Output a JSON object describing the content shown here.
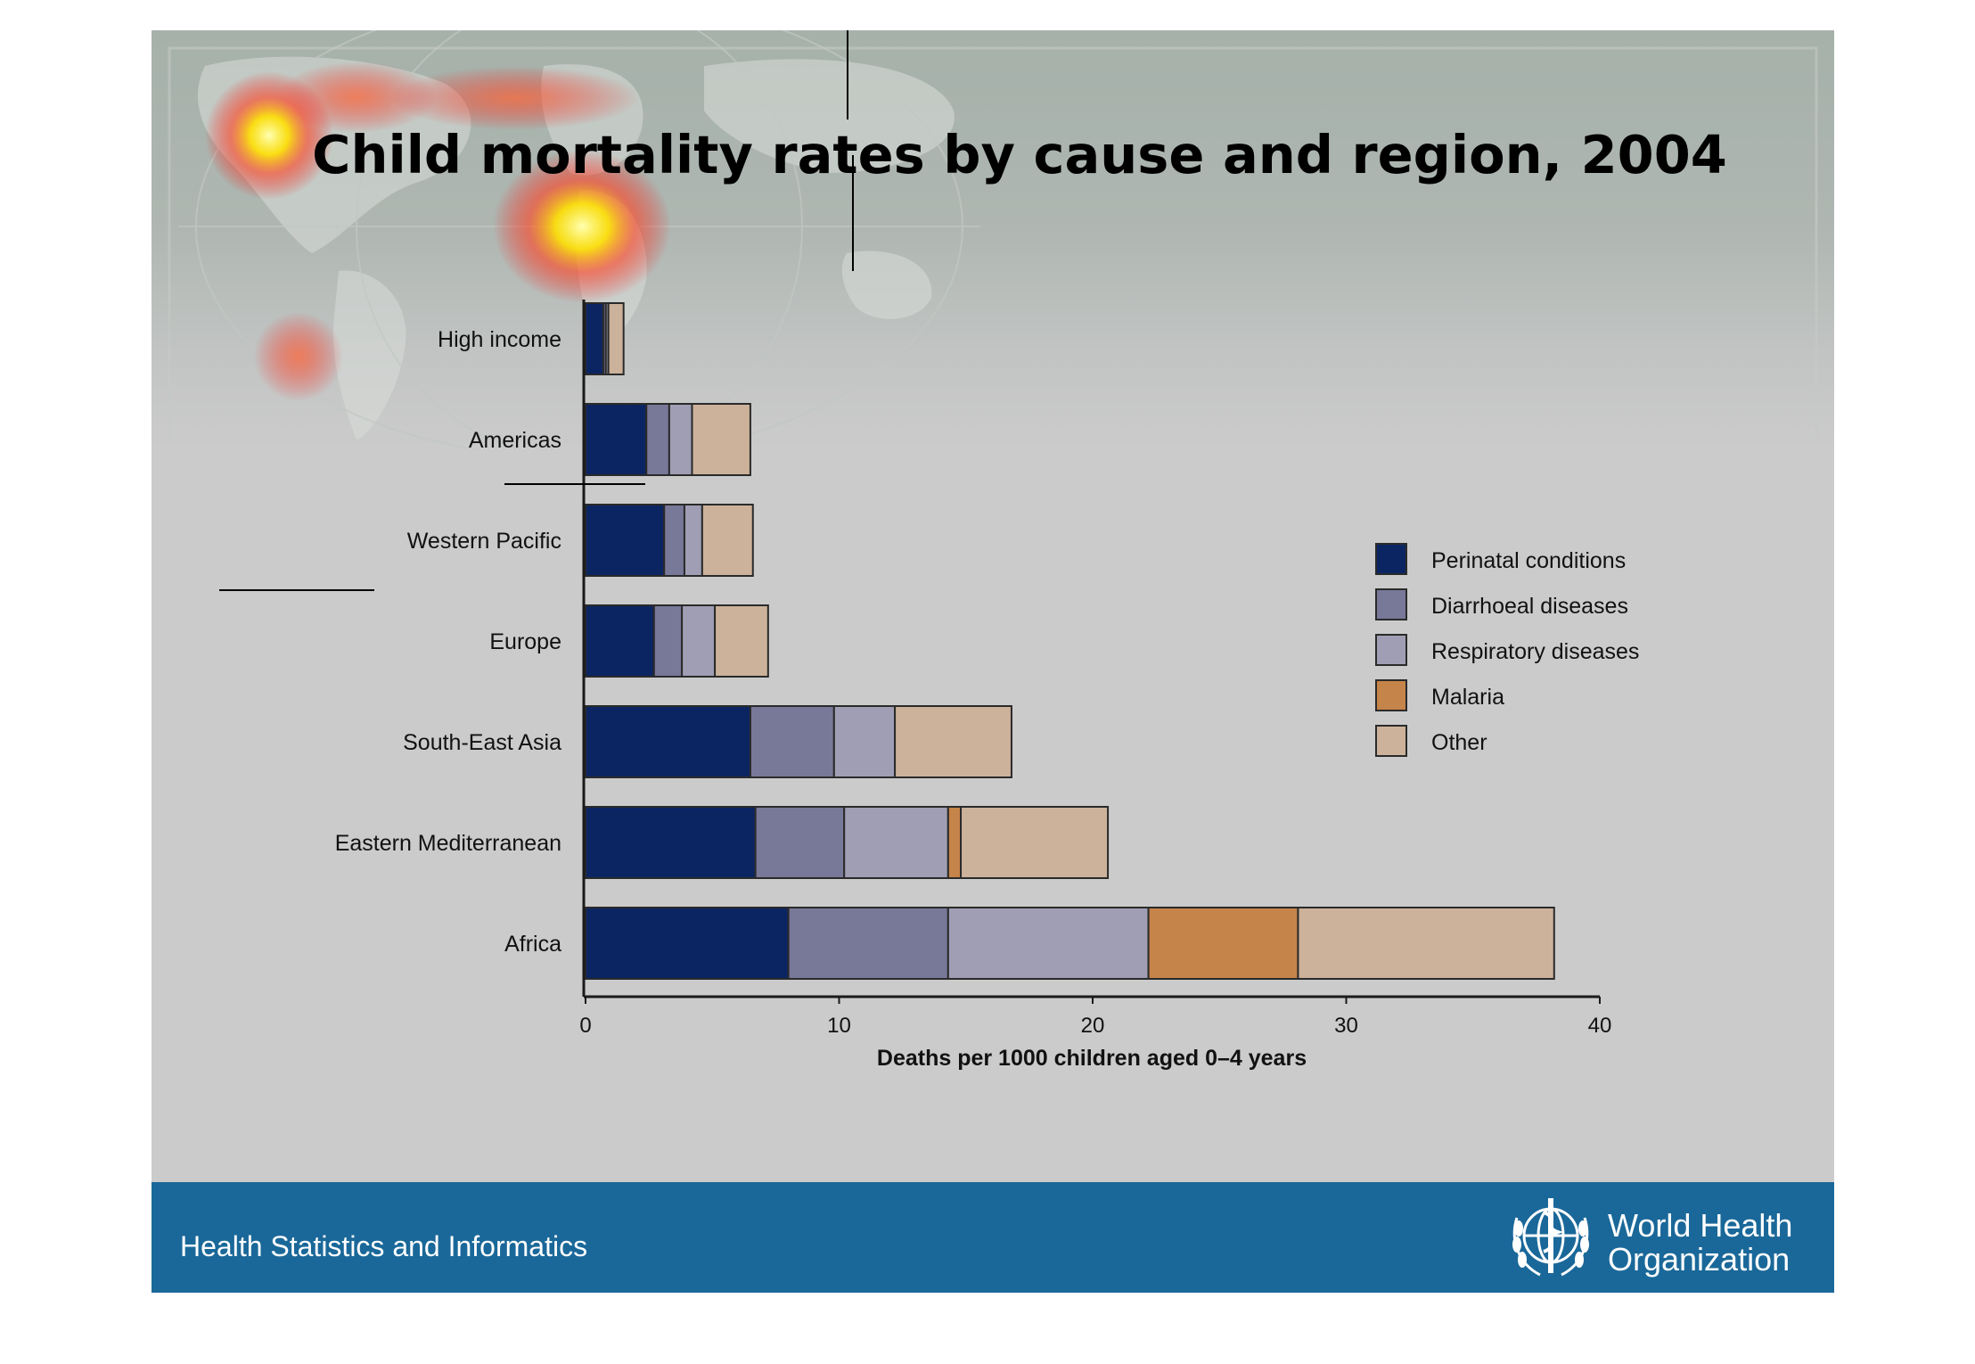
{
  "title": "Child mortality rates by cause and region, 2004",
  "footer": {
    "left_text": "Health Statistics and Informatics",
    "org_name_line1": "World Health",
    "org_name_line2": "Organization"
  },
  "colors": {
    "slide_bg": "#cbcbcb",
    "footer_bg": "#1a6899"
  },
  "chart_data": {
    "type": "bar",
    "orientation": "horizontal",
    "stacked": true,
    "categories": [
      "High income",
      "Americas",
      "Western Pacific",
      "Europe",
      "South-East Asia",
      "Eastern Mediterranean",
      "Africa"
    ],
    "series": [
      {
        "name": "Perinatal conditions",
        "color": "#0b2563",
        "values": [
          0.7,
          2.4,
          3.1,
          2.7,
          6.5,
          6.7,
          8.0
        ]
      },
      {
        "name": "Diarrhoeal diseases",
        "color": "#787899",
        "values": [
          0.1,
          0.9,
          0.8,
          1.1,
          3.3,
          3.5,
          6.3
        ]
      },
      {
        "name": "Respiratory diseases",
        "color": "#a09eb4",
        "values": [
          0.1,
          0.9,
          0.7,
          1.3,
          2.4,
          4.1,
          7.9
        ]
      },
      {
        "name": "Malaria",
        "color": "#c58449",
        "values": [
          0,
          0,
          0,
          0,
          0,
          0.5,
          5.9
        ]
      },
      {
        "name": "Other",
        "color": "#ccb29b",
        "values": [
          0.6,
          2.3,
          2.0,
          2.1,
          4.6,
          5.8,
          10.1
        ]
      }
    ],
    "xlabel": "Deaths per 1000 children aged 0–4 years",
    "xlim": [
      0,
      40
    ],
    "xticks": [
      "0",
      "10",
      "20",
      "30",
      "40"
    ],
    "grid": false,
    "legend_position": "right"
  }
}
